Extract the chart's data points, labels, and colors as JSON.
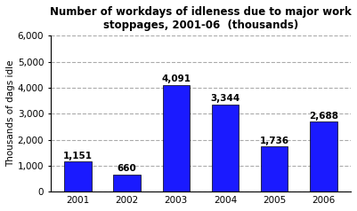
{
  "categories": [
    "2001",
    "2002",
    "2003",
    "2004",
    "2005",
    "2006"
  ],
  "values": [
    1151,
    660,
    4091,
    3344,
    1736,
    2688
  ],
  "labels": [
    "1,151",
    "660",
    "4,091",
    "3,344",
    "1,736",
    "2,688"
  ],
  "bar_color": "#1a1aff",
  "title_line1": "Number of workdays of idleness due to major work",
  "title_line2": "stoppages, 2001-06  (thousands)",
  "ylabel": "Thousands of dags idle",
  "ylim": [
    0,
    6000
  ],
  "yticks": [
    0,
    1000,
    2000,
    3000,
    4000,
    5000,
    6000
  ],
  "ytick_labels": [
    "0",
    "1,000",
    "2,000",
    "3,000",
    "4,000",
    "5,000",
    "6,000"
  ],
  "background_color": "#ffffff",
  "grid_color": "#aaaaaa",
  "bar_edge_color": "#000000",
  "label_fontsize": 7.5,
  "title_fontsize": 8.5,
  "axis_fontsize": 7.5
}
